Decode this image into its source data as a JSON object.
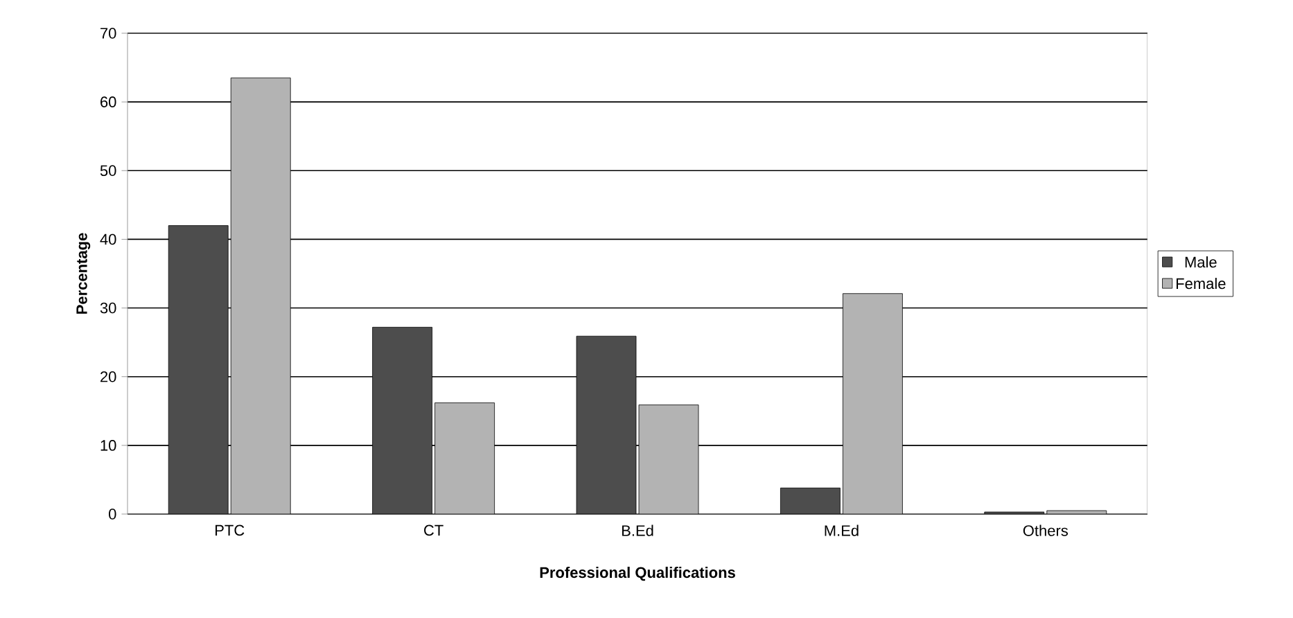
{
  "chart_data": {
    "type": "bar",
    "xlabel": "Professional Qualifications",
    "ylabel": "Percentage",
    "categories": [
      "PTC",
      "CT",
      "B.Ed",
      "M.Ed",
      "Others"
    ],
    "series": [
      {
        "name": "Male",
        "color": "#4d4d4d",
        "values": [
          42.0,
          27.2,
          25.9,
          3.8,
          0.3
        ]
      },
      {
        "name": "Female",
        "color": "#b3b3b3",
        "values": [
          63.5,
          16.2,
          15.9,
          32.1,
          0.5
        ]
      }
    ],
    "ylim": [
      0,
      70
    ],
    "yticks": [
      0,
      10,
      20,
      30,
      40,
      50,
      60,
      70
    ],
    "grid": "y",
    "legend": "right"
  }
}
